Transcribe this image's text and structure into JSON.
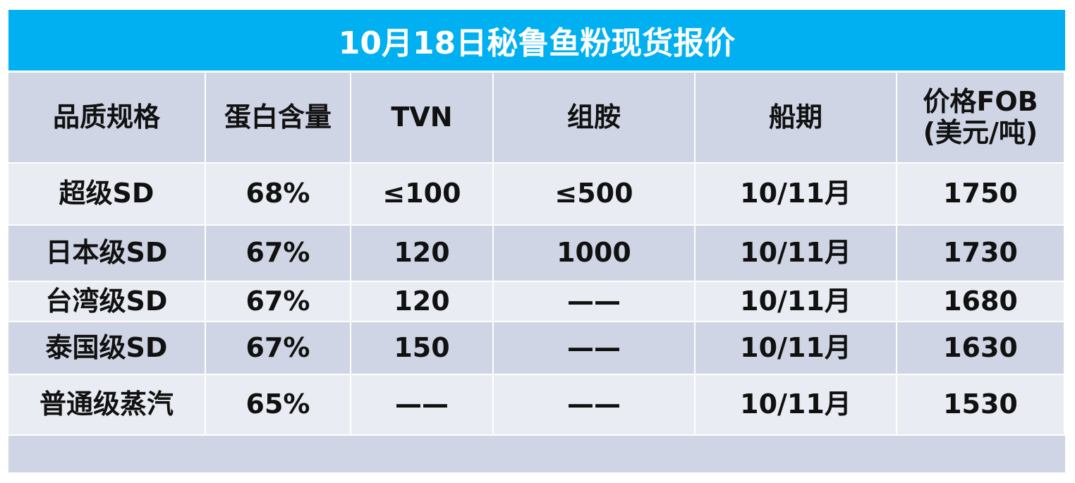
{
  "header": {
    "title": "10月18日秘鲁鱼粉现货报价"
  },
  "table": {
    "columns": [
      "品质规格",
      "蛋白含量",
      "TVN",
      "组胺",
      "船期",
      "价格FOB\n(美元/吨)"
    ],
    "rows": [
      [
        "超级SD",
        "68%",
        "≤100",
        "≤500",
        "10/11月",
        "1750"
      ],
      [
        "日本级SD",
        "67%",
        "120",
        "1000",
        "10/11月",
        "1730"
      ],
      [
        "台湾级SD",
        "67%",
        "120",
        "——",
        "10/11月",
        "1680"
      ],
      [
        "泰国级SD",
        "67%",
        "150",
        "——",
        "10/11月",
        "1630"
      ],
      [
        "普通级蒸汽",
        "65%",
        "——",
        "——",
        "10/11月",
        "1530"
      ]
    ]
  }
}
